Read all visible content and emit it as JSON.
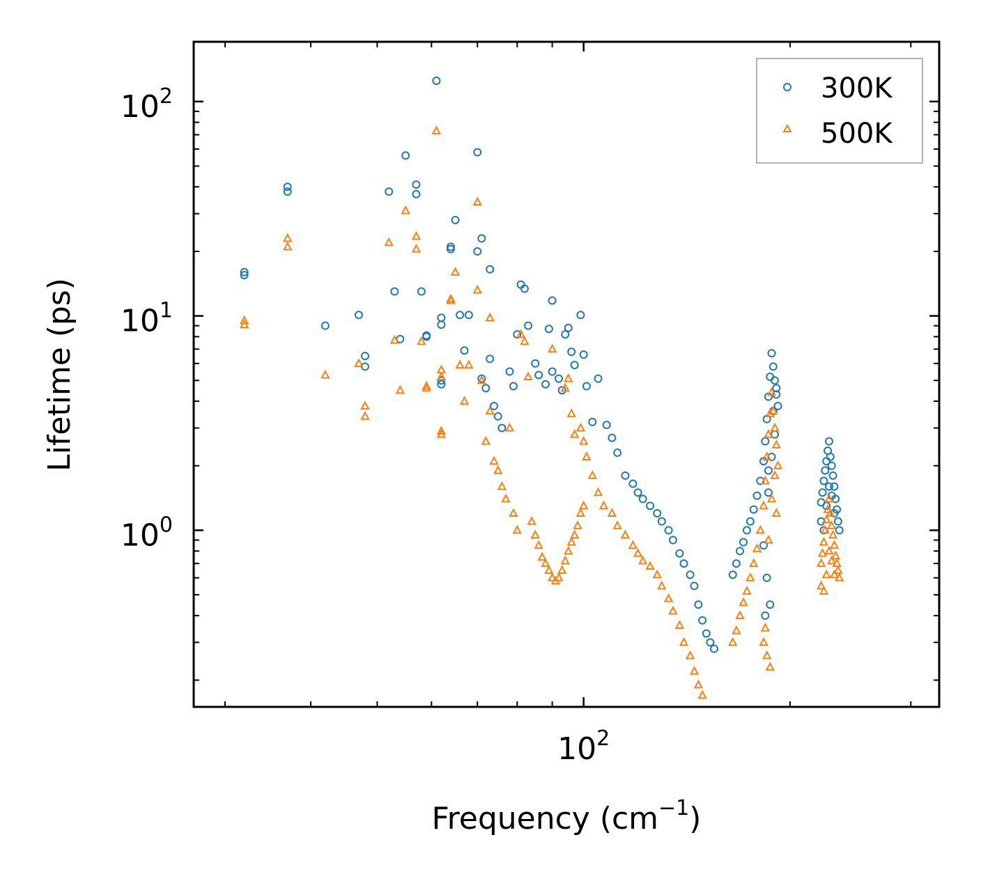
{
  "chart_data": {
    "type": "scatter",
    "title": "",
    "xlabel": "Frequency (cm",
    "xlabel_sup": "−1",
    "xlabel_end": ")",
    "ylabel": "Lifetime (ps)",
    "xscale": "log",
    "yscale": "log",
    "xlim": [
      27,
      330
    ],
    "ylim": [
      0.15,
      190
    ],
    "x_tick_labels": [
      {
        "base": "10",
        "exp": "2",
        "value": 100
      }
    ],
    "y_tick_labels": [
      {
        "base": "10",
        "exp": "0",
        "value": 1
      },
      {
        "base": "10",
        "exp": "1",
        "value": 10
      },
      {
        "base": "10",
        "exp": "2",
        "value": 100
      }
    ],
    "legend_position": "top-right",
    "series": [
      {
        "name": "300K",
        "marker": "circle",
        "color": "#1f77b4",
        "points": [
          [
            32,
            16
          ],
          [
            32,
            15.5
          ],
          [
            37,
            40
          ],
          [
            37,
            38
          ],
          [
            42,
            9
          ],
          [
            47,
            10.1
          ],
          [
            48,
            6.5
          ],
          [
            48,
            5.8
          ],
          [
            52,
            38
          ],
          [
            53,
            13
          ],
          [
            54,
            7.8
          ],
          [
            55,
            56
          ],
          [
            57,
            41
          ],
          [
            57,
            37
          ],
          [
            58,
            13
          ],
          [
            59,
            8.1
          ],
          [
            59,
            8.0
          ],
          [
            61,
            125
          ],
          [
            62,
            9.8
          ],
          [
            62,
            9.1
          ],
          [
            62,
            5.0
          ],
          [
            62,
            4.8
          ],
          [
            64,
            20.5
          ],
          [
            64,
            21
          ],
          [
            65,
            28
          ],
          [
            66,
            10.1
          ],
          [
            67,
            6.9
          ],
          [
            68,
            10.1
          ],
          [
            70,
            58
          ],
          [
            70,
            20
          ],
          [
            71,
            23
          ],
          [
            71,
            5.1
          ],
          [
            72,
            4.6
          ],
          [
            73,
            16.5
          ],
          [
            73,
            6.3
          ],
          [
            74,
            3.8
          ],
          [
            75,
            3.4
          ],
          [
            76,
            3.0
          ],
          [
            78,
            5.5
          ],
          [
            79,
            4.7
          ],
          [
            80,
            8.2
          ],
          [
            81,
            14
          ],
          [
            82,
            13.4
          ],
          [
            83,
            9.0
          ],
          [
            85,
            6.0
          ],
          [
            86,
            5.3
          ],
          [
            88,
            4.8
          ],
          [
            89,
            8.7
          ],
          [
            90,
            5.5
          ],
          [
            90,
            11.8
          ],
          [
            92,
            5.1
          ],
          [
            93,
            4.5
          ],
          [
            94,
            8.2
          ],
          [
            95,
            8.8
          ],
          [
            96,
            6.8
          ],
          [
            97,
            5.9
          ],
          [
            99,
            10.1
          ],
          [
            100,
            6.6
          ],
          [
            101,
            4.7
          ],
          [
            103,
            3.2
          ],
          [
            105,
            5.1
          ],
          [
            108,
            3.1
          ],
          [
            110,
            2.7
          ],
          [
            112,
            2.3
          ],
          [
            115,
            1.8
          ],
          [
            118,
            1.65
          ],
          [
            120,
            1.5
          ],
          [
            122,
            1.4
          ],
          [
            125,
            1.3
          ],
          [
            128,
            1.2
          ],
          [
            130,
            1.1
          ],
          [
            133,
            1.0
          ],
          [
            135,
            0.9
          ],
          [
            138,
            0.78
          ],
          [
            140,
            0.7
          ],
          [
            143,
            0.62
          ],
          [
            145,
            0.55
          ],
          [
            147,
            0.45
          ],
          [
            149,
            0.38
          ],
          [
            151,
            0.33
          ],
          [
            153,
            0.3
          ],
          [
            155,
            0.28
          ],
          [
            165,
            0.62
          ],
          [
            167,
            0.7
          ],
          [
            169,
            0.8
          ],
          [
            171,
            0.88
          ],
          [
            173,
            1.0
          ],
          [
            175,
            1.1
          ],
          [
            177,
            1.25
          ],
          [
            179,
            1.45
          ],
          [
            181,
            1.7
          ],
          [
            183,
            2.1
          ],
          [
            184,
            2.6
          ],
          [
            185,
            3.3
          ],
          [
            186,
            4.2
          ],
          [
            187,
            5.2
          ],
          [
            188,
            6.7
          ],
          [
            189,
            5.8
          ],
          [
            190,
            5.0
          ],
          [
            191,
            4.3
          ],
          [
            192,
            3.8
          ],
          [
            183,
            0.85
          ],
          [
            185,
            0.6
          ],
          [
            187,
            0.45
          ],
          [
            184,
            0.4
          ],
          [
            186,
            1.5
          ],
          [
            188,
            2.2
          ],
          [
            190,
            2.8
          ],
          [
            189,
            3.6
          ],
          [
            191,
            4.6
          ],
          [
            186,
            1.9
          ],
          [
            222,
            1.35
          ],
          [
            223,
            1.5
          ],
          [
            224,
            1.7
          ],
          [
            225,
            1.9
          ],
          [
            226,
            2.1
          ],
          [
            227,
            2.35
          ],
          [
            228,
            2.6
          ],
          [
            229,
            2.2
          ],
          [
            230,
            2.0
          ],
          [
            231,
            1.8
          ],
          [
            232,
            1.6
          ],
          [
            233,
            1.4
          ],
          [
            234,
            1.25
          ],
          [
            235,
            1.1
          ],
          [
            236,
            1.0
          ],
          [
            222,
            1.1
          ],
          [
            224,
            1.0
          ],
          [
            226,
            1.3
          ],
          [
            228,
            1.6
          ],
          [
            230,
            1.45
          ],
          [
            232,
            1.2
          ]
        ]
      },
      {
        "name": "500K",
        "marker": "triangle",
        "color": "#ff7f0e",
        "points": [
          [
            32,
            9.5
          ],
          [
            32,
            9.1
          ],
          [
            37,
            23
          ],
          [
            37,
            21
          ],
          [
            42,
            5.3
          ],
          [
            47,
            6.0
          ],
          [
            48,
            3.8
          ],
          [
            48,
            3.4
          ],
          [
            52,
            22
          ],
          [
            53,
            7.7
          ],
          [
            54,
            4.5
          ],
          [
            55,
            31
          ],
          [
            57,
            23.5
          ],
          [
            57,
            20.5
          ],
          [
            58,
            7.6
          ],
          [
            59,
            4.7
          ],
          [
            59,
            4.6
          ],
          [
            61,
            73
          ],
          [
            62,
            5.6
          ],
          [
            62,
            5.2
          ],
          [
            62,
            2.9
          ],
          [
            62,
            2.8
          ],
          [
            64,
            12
          ],
          [
            64,
            11.8
          ],
          [
            65,
            16
          ],
          [
            66,
            5.9
          ],
          [
            67,
            4.0
          ],
          [
            68,
            5.9
          ],
          [
            70,
            34
          ],
          [
            70,
            13.2
          ],
          [
            71,
            5.0
          ],
          [
            72,
            2.6
          ],
          [
            73,
            9.8
          ],
          [
            73,
            3.6
          ],
          [
            74,
            2.1
          ],
          [
            75,
            1.9
          ],
          [
            76,
            1.6
          ],
          [
            77,
            1.4
          ],
          [
            78,
            3.0
          ],
          [
            79,
            1.2
          ],
          [
            80,
            1.0
          ],
          [
            81,
            8.2
          ],
          [
            82,
            7.6
          ],
          [
            83,
            5.2
          ],
          [
            84,
            1.1
          ],
          [
            85,
            0.95
          ],
          [
            86,
            0.85
          ],
          [
            87,
            0.75
          ],
          [
            88,
            0.7
          ],
          [
            89,
            0.65
          ],
          [
            90,
            0.6
          ],
          [
            91,
            0.58
          ],
          [
            92,
            0.6
          ],
          [
            93,
            0.65
          ],
          [
            94,
            0.72
          ],
          [
            95,
            0.8
          ],
          [
            96,
            0.88
          ],
          [
            97,
            0.95
          ],
          [
            98,
            1.05
          ],
          [
            99,
            1.2
          ],
          [
            100,
            1.3
          ],
          [
            90,
            7.0
          ],
          [
            94,
            4.6
          ],
          [
            95,
            5.1
          ],
          [
            96,
            3.5
          ],
          [
            97,
            2.8
          ],
          [
            99,
            3.0
          ],
          [
            100,
            2.6
          ],
          [
            101,
            2.2
          ],
          [
            103,
            1.8
          ],
          [
            105,
            1.5
          ],
          [
            107,
            1.3
          ],
          [
            110,
            1.2
          ],
          [
            112,
            1.05
          ],
          [
            115,
            0.95
          ],
          [
            118,
            0.85
          ],
          [
            120,
            0.78
          ],
          [
            122,
            0.72
          ],
          [
            125,
            0.68
          ],
          [
            128,
            0.62
          ],
          [
            130,
            0.55
          ],
          [
            133,
            0.48
          ],
          [
            135,
            0.42
          ],
          [
            138,
            0.36
          ],
          [
            140,
            0.3
          ],
          [
            143,
            0.26
          ],
          [
            145,
            0.22
          ],
          [
            147,
            0.19
          ],
          [
            149,
            0.17
          ],
          [
            165,
            0.3
          ],
          [
            167,
            0.34
          ],
          [
            169,
            0.4
          ],
          [
            171,
            0.46
          ],
          [
            173,
            0.52
          ],
          [
            175,
            0.6
          ],
          [
            177,
            0.7
          ],
          [
            179,
            0.82
          ],
          [
            181,
            1.0
          ],
          [
            183,
            1.3
          ],
          [
            184,
            1.7
          ],
          [
            185,
            2.2
          ],
          [
            186,
            2.8
          ],
          [
            187,
            3.5
          ],
          [
            188,
            4.4
          ],
          [
            189,
            3.6
          ],
          [
            190,
            3.0
          ],
          [
            191,
            2.5
          ],
          [
            192,
            2.0
          ],
          [
            183,
            0.3
          ],
          [
            185,
            0.26
          ],
          [
            187,
            0.23
          ],
          [
            184,
            0.35
          ],
          [
            186,
            0.9
          ],
          [
            188,
            1.4
          ],
          [
            190,
            1.8
          ],
          [
            191,
            1.2
          ],
          [
            222,
            0.7
          ],
          [
            223,
            0.78
          ],
          [
            224,
            0.88
          ],
          [
            225,
            1.0
          ],
          [
            226,
            1.12
          ],
          [
            227,
            1.25
          ],
          [
            228,
            1.4
          ],
          [
            229,
            1.2
          ],
          [
            230,
            1.05
          ],
          [
            231,
            0.95
          ],
          [
            232,
            0.85
          ],
          [
            233,
            0.76
          ],
          [
            234,
            0.7
          ],
          [
            235,
            0.65
          ],
          [
            236,
            0.6
          ],
          [
            222,
            0.55
          ],
          [
            224,
            0.52
          ],
          [
            226,
            0.62
          ],
          [
            228,
            0.8
          ],
          [
            230,
            0.72
          ],
          [
            232,
            0.62
          ]
        ]
      }
    ]
  }
}
